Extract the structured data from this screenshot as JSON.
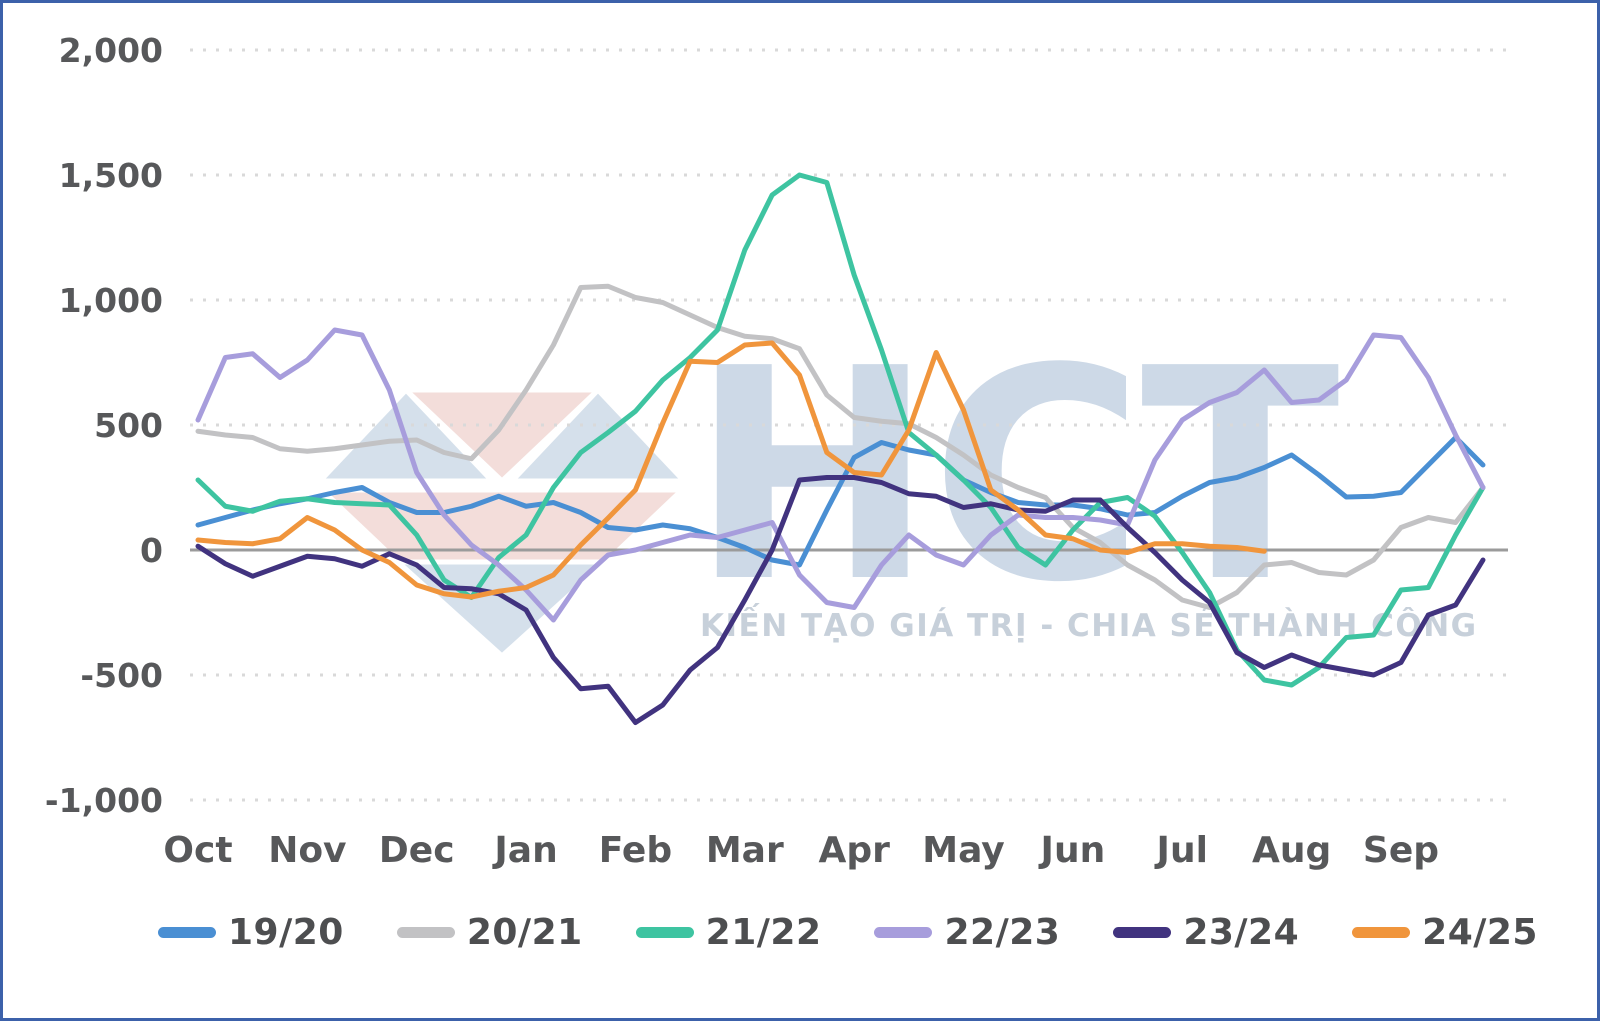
{
  "frame": {
    "border_color": "#3c61aa",
    "background_color": "#ffffff"
  },
  "watermark": {
    "logo_text": "HCT",
    "slogan": "KIẾN TẠO GIÁ TRỊ - CHIA SẺ THÀNH CÔNG",
    "logo_color": "#cdd9e7",
    "slogan_color": "#c7d0da",
    "diamond_pink": "#eac3bd",
    "diamond_blue": "#b3c8dc"
  },
  "chart_data": {
    "type": "line",
    "title": "",
    "xlabel": "",
    "ylabel": "",
    "x_tick_labels": [
      "Oct",
      "Nov",
      "Dec",
      "Jan",
      "Feb",
      "Mar",
      "Apr",
      "May",
      "Jun",
      "Jul",
      "Aug",
      "Sep"
    ],
    "points_per_month": 4,
    "y_ticks": [
      2000,
      1500,
      1000,
      500,
      0,
      -500,
      -1000
    ],
    "y_tick_labels": [
      "2,000",
      "1,500",
      "1,000",
      "500",
      "0",
      "-500",
      "-1,000"
    ],
    "ylim": [
      -1100,
      2150
    ],
    "grid": "horizontal-dotted",
    "zero_axis_solid": true,
    "axis_text_color": "#57585a",
    "grid_color": "#d9d9d9",
    "zero_line_color": "#9b9b9b",
    "legend_position": "bottom",
    "legend_text_color": "#4d4e50",
    "series": [
      {
        "name": "19/20",
        "color": "#4a8fd3",
        "values": [
          100,
          130,
          160,
          185,
          205,
          230,
          250,
          190,
          150,
          150,
          175,
          215,
          175,
          190,
          150,
          90,
          80,
          100,
          85,
          50,
          10,
          -40,
          -60,
          160,
          370,
          430,
          400,
          380,
          280,
          230,
          190,
          180,
          180,
          165,
          140,
          150,
          215,
          270,
          290,
          330,
          380,
          300,
          212,
          215,
          230,
          340,
          450,
          340
        ]
      },
      {
        "name": "20/21",
        "color": "#c2c2c4",
        "values": [
          475,
          460,
          450,
          405,
          395,
          405,
          420,
          435,
          440,
          390,
          365,
          480,
          640,
          820,
          1050,
          1055,
          1010,
          990,
          940,
          890,
          855,
          845,
          805,
          620,
          530,
          515,
          505,
          450,
          380,
          300,
          250,
          210,
          90,
          30,
          -60,
          -120,
          -200,
          -230,
          -170,
          -60,
          -50,
          -90,
          -100,
          -40,
          90,
          130,
          110,
          250
        ]
      },
      {
        "name": "21/22",
        "color": "#3ec4a1",
        "values": [
          280,
          175,
          155,
          195,
          205,
          190,
          185,
          180,
          60,
          -120,
          -190,
          -30,
          60,
          250,
          390,
          470,
          555,
          680,
          770,
          880,
          1200,
          1420,
          1500,
          1470,
          1100,
          800,
          470,
          380,
          280,
          170,
          10,
          -60,
          80,
          190,
          210,
          135,
          -10,
          -170,
          -400,
          -520,
          -540,
          -470,
          -350,
          -340,
          -160,
          -150,
          60,
          250
        ]
      },
      {
        "name": "22/23",
        "color": "#a79ddc",
        "values": [
          520,
          770,
          785,
          690,
          760,
          880,
          860,
          640,
          310,
          140,
          20,
          -60,
          -160,
          -280,
          -120,
          -20,
          0,
          30,
          60,
          50,
          80,
          110,
          -100,
          -210,
          -230,
          -60,
          60,
          -20,
          -60,
          60,
          140,
          130,
          130,
          120,
          100,
          360,
          520,
          590,
          630,
          720,
          590,
          600,
          680,
          860,
          850,
          690,
          460,
          250
        ]
      },
      {
        "name": "23/24",
        "color": "#41337f",
        "values": [
          15,
          -55,
          -105,
          -65,
          -25,
          -35,
          -65,
          -15,
          -60,
          -150,
          -155,
          -175,
          -240,
          -430,
          -555,
          -545,
          -690,
          -620,
          -480,
          -390,
          -200,
          0,
          280,
          290,
          290,
          270,
          225,
          215,
          170,
          185,
          160,
          155,
          200,
          200,
          90,
          -10,
          -120,
          -210,
          -410,
          -470,
          -420,
          -460,
          -480,
          -500,
          -450,
          -260,
          -220,
          -40
        ]
      },
      {
        "name": "24/25",
        "color": "#f0953c",
        "values": [
          40,
          30,
          25,
          45,
          130,
          80,
          0,
          -50,
          -140,
          -175,
          -188,
          -165,
          -150,
          -100,
          20,
          128,
          240,
          508,
          755,
          750,
          820,
          828,
          700,
          390,
          310,
          300,
          480,
          790,
          560,
          240,
          160,
          60,
          45,
          0,
          -10,
          25,
          25,
          15,
          10,
          -5
        ]
      }
    ]
  }
}
